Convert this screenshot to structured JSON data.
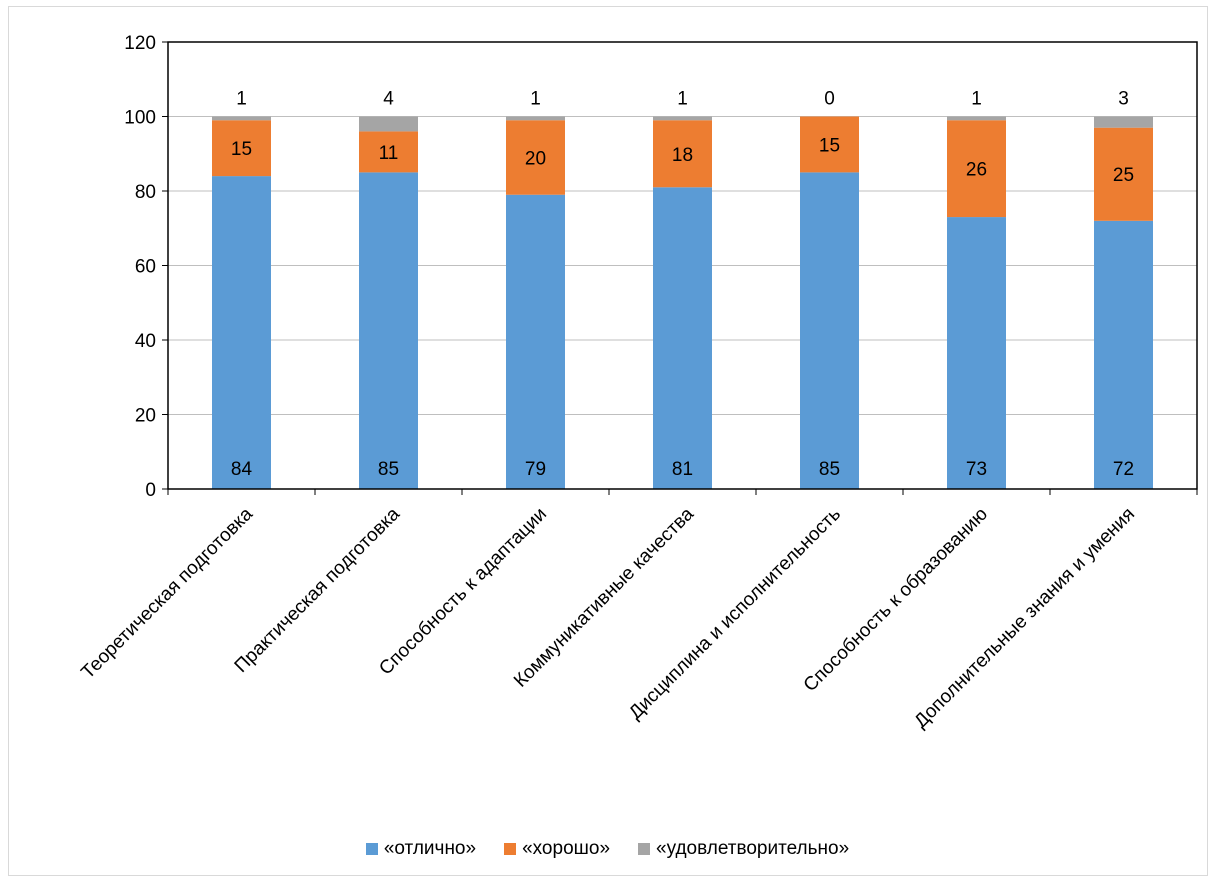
{
  "chart_data": {
    "type": "bar",
    "stacked": true,
    "categories": [
      "Теоретическая подготовка",
      "Практическая подготовка",
      "Способность к адаптации",
      "Коммуникативные качества",
      "Дисциплина и исполнительность",
      "Способность к образованию",
      "Дополнительные знания и умения"
    ],
    "series": [
      {
        "name": "«отлично»",
        "color": "#5b9bd5",
        "values": [
          84,
          85,
          79,
          81,
          85,
          73,
          72
        ]
      },
      {
        "name": "«хорошо»",
        "color": "#ed7d31",
        "values": [
          15,
          11,
          20,
          18,
          15,
          26,
          25
        ]
      },
      {
        "name": "«удовлетворительно»",
        "color": "#a5a5a5",
        "values": [
          1,
          4,
          1,
          1,
          0,
          1,
          3
        ]
      }
    ],
    "ylim": [
      0,
      120
    ],
    "yticks": [
      "0",
      "20",
      "40",
      "60",
      "80",
      "100",
      "120"
    ],
    "grid": true,
    "legend_position": "bottom"
  }
}
